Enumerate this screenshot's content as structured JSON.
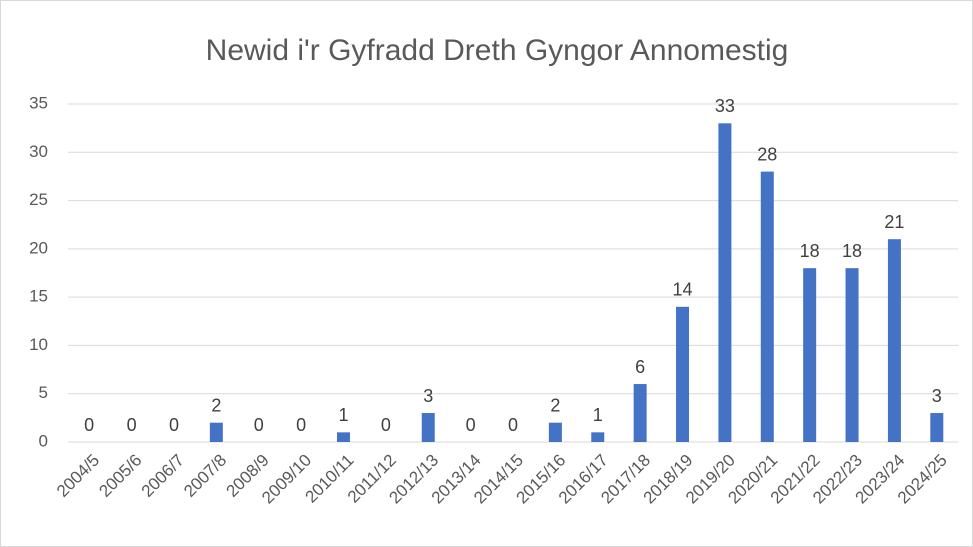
{
  "chart_data": {
    "type": "bar",
    "title": "Newid i'r Gyfradd Dreth Gyngor Annomestig",
    "categories": [
      "2004/5",
      "2005/6",
      "2006/7",
      "2007/8",
      "2008/9",
      "2009/10",
      "2010/11",
      "2011/12",
      "2012/13",
      "2013/14",
      "2014/15",
      "2015/16",
      "2016/17",
      "2017/18",
      "2018/19",
      "2019/20",
      "2020/21",
      "2021/22",
      "2022/23",
      "2023/24",
      "2024/25"
    ],
    "values": [
      0,
      0,
      0,
      2,
      0,
      0,
      1,
      0,
      3,
      0,
      0,
      2,
      1,
      6,
      14,
      33,
      28,
      18,
      18,
      21,
      3
    ],
    "color": "#4472c4",
    "ylim": [
      0,
      35
    ],
    "yticks": [
      0,
      5,
      10,
      15,
      20,
      25,
      30,
      35
    ],
    "grid": true
  }
}
